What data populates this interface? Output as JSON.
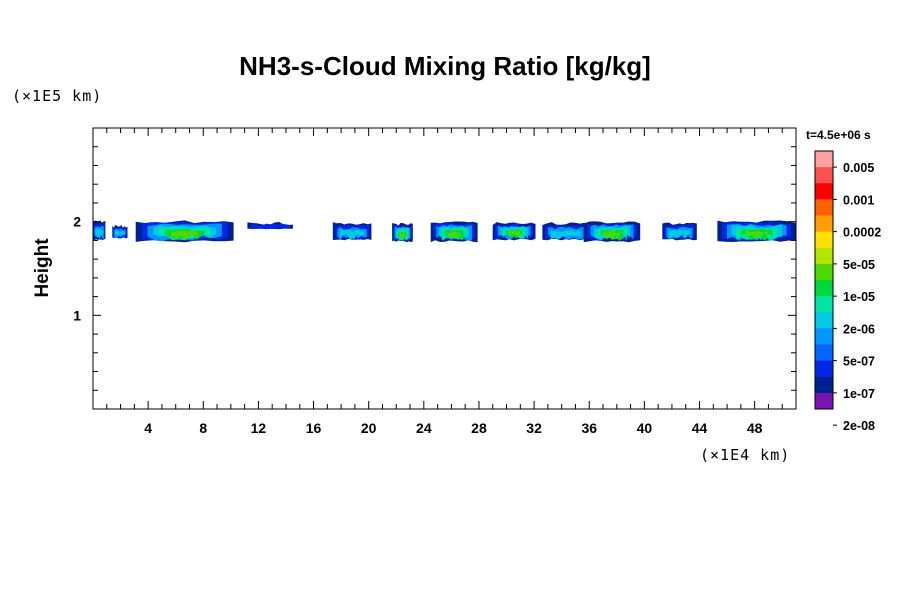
{
  "chart_data": {
    "type": "heatmap",
    "title": "NH3-s-Cloud Mixing Ratio [kg/kg]",
    "ylabel": "Height",
    "x_unit": "(×1E4 km)",
    "y_unit": "(×1E5 km)",
    "time_label": "t=4.5e+06 s",
    "xlim": [
      0,
      51
    ],
    "ylim": [
      0,
      3
    ],
    "x_ticks": [
      4,
      8,
      12,
      16,
      20,
      24,
      28,
      32,
      36,
      40,
      44,
      48
    ],
    "y_ticks": [
      1,
      2
    ],
    "colorbar": {
      "labels": [
        "0.005",
        "0.001",
        "0.0002",
        "5e-05",
        "1e-05",
        "2e-06",
        "5e-07",
        "1e-07",
        "2e-08"
      ],
      "colors": [
        "#ffa0a0",
        "#ff5050",
        "#ff0000",
        "#ff6000",
        "#ff9e00",
        "#ffe000",
        "#b4e600",
        "#4cd800",
        "#00d83c",
        "#00e6a0",
        "#00c8e6",
        "#0096ff",
        "#0064ff",
        "#0028e6",
        "#002090",
        "#7814b4"
      ]
    },
    "cloud_blobs": [
      {
        "x0": 0.0,
        "x1": 0.9,
        "top": 2.0,
        "bottom": 1.8,
        "max_level": "5e-07"
      },
      {
        "x0": 1.4,
        "x1": 2.5,
        "top": 1.95,
        "bottom": 1.82,
        "max_level": "5e-07"
      },
      {
        "x0": 3.1,
        "x1": 10.2,
        "top": 2.0,
        "bottom": 1.78,
        "max_level": "2e-06"
      },
      {
        "x0": 11.2,
        "x1": 14.5,
        "top": 1.98,
        "bottom": 1.92,
        "max_level": "1e-07"
      },
      {
        "x0": 17.4,
        "x1": 20.2,
        "top": 1.98,
        "bottom": 1.8,
        "max_level": "5e-07"
      },
      {
        "x0": 21.7,
        "x1": 23.2,
        "top": 1.97,
        "bottom": 1.78,
        "max_level": "2e-06"
      },
      {
        "x0": 24.5,
        "x1": 27.9,
        "top": 1.99,
        "bottom": 1.78,
        "max_level": "2e-06"
      },
      {
        "x0": 29.0,
        "x1": 32.1,
        "top": 1.98,
        "bottom": 1.8,
        "max_level": "2e-06"
      },
      {
        "x0": 32.6,
        "x1": 36.0,
        "top": 1.98,
        "bottom": 1.8,
        "max_level": "5e-07"
      },
      {
        "x0": 35.6,
        "x1": 39.7,
        "top": 1.99,
        "bottom": 1.78,
        "max_level": "2e-06"
      },
      {
        "x0": 41.3,
        "x1": 43.8,
        "top": 1.98,
        "bottom": 1.8,
        "max_level": "5e-07"
      },
      {
        "x0": 45.3,
        "x1": 51.0,
        "top": 2.0,
        "bottom": 1.78,
        "max_level": "2e-06"
      }
    ]
  }
}
